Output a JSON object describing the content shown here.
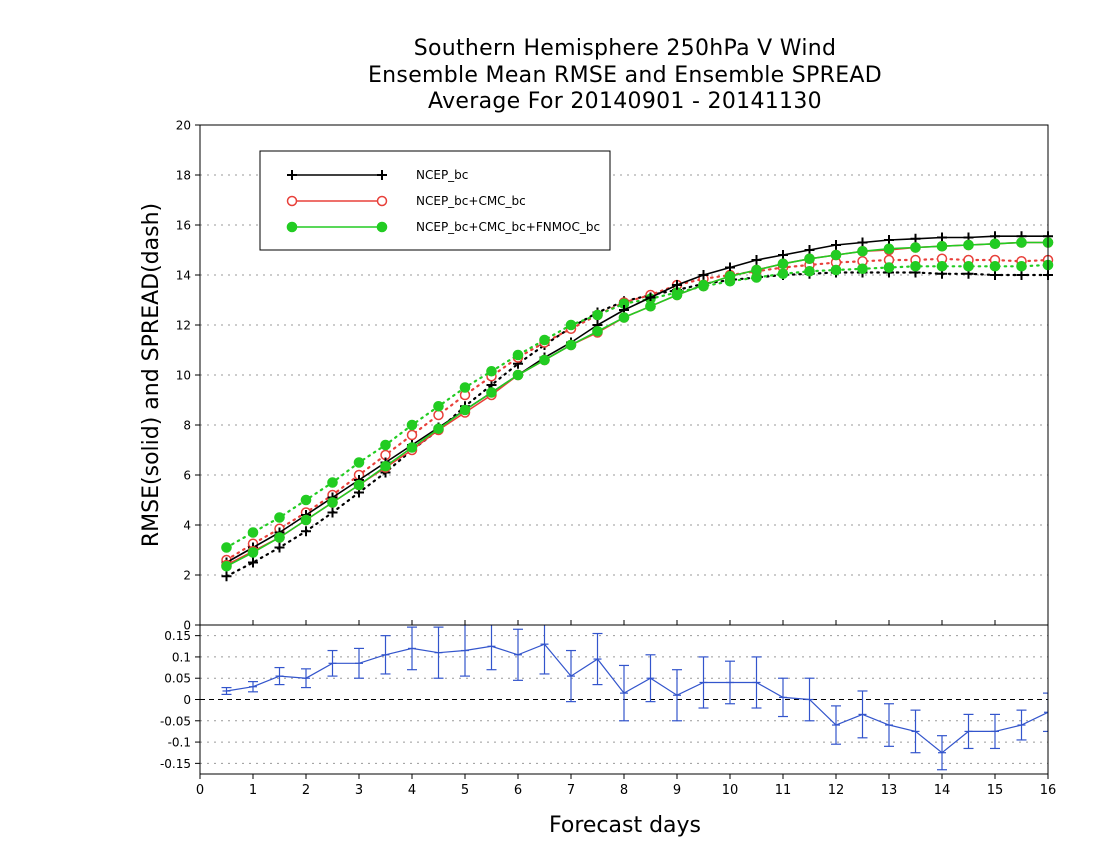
{
  "titles": {
    "line1": "Southern Hemisphere 250hPa V Wind",
    "line2": "Ensemble Mean RMSE and Ensemble SPREAD",
    "line3": "Average For 20140901 - 20141130"
  },
  "colors": {
    "ncep": "#000000",
    "cmc": "#e8403a",
    "fnmoc": "#22cc22",
    "diff": "#3355cc"
  },
  "chart_data": [
    {
      "type": "line",
      "ylabel": "RMSE(solid) and SPREAD(dash)",
      "xlabel": "",
      "xlim": [
        0,
        16
      ],
      "ylim": [
        0,
        20
      ],
      "yticks": [
        0,
        2,
        4,
        6,
        8,
        10,
        12,
        14,
        16,
        18,
        20
      ],
      "grid": true,
      "legend_position": "top-left",
      "x": [
        0.5,
        1,
        1.5,
        2,
        2.5,
        3,
        3.5,
        4,
        4.5,
        5,
        5.5,
        6,
        6.5,
        7,
        7.5,
        8,
        8.5,
        9,
        9.5,
        10,
        10.5,
        11,
        11.5,
        12,
        12.5,
        13,
        13.5,
        14,
        14.5,
        15,
        15.5,
        16
      ],
      "series": [
        {
          "name": "NCEP_bc",
          "style": "solid",
          "marker": "plus",
          "values": [
            2.5,
            3.1,
            3.7,
            4.4,
            5.1,
            5.8,
            6.5,
            7.2,
            7.9,
            8.6,
            9.3,
            10.0,
            10.7,
            11.3,
            12.0,
            12.6,
            13.1,
            13.6,
            14.0,
            14.3,
            14.6,
            14.8,
            15.0,
            15.2,
            15.3,
            15.4,
            15.45,
            15.5,
            15.5,
            15.55,
            15.55,
            15.55
          ]
        },
        {
          "name": "NCEP_bc+CMC_bc",
          "style": "solid",
          "marker": "open-circle",
          "values": [
            2.4,
            2.95,
            3.5,
            4.2,
            4.9,
            5.6,
            6.3,
            7.0,
            7.8,
            8.5,
            9.2,
            10.0,
            10.6,
            11.2,
            11.7,
            12.3,
            12.75,
            13.2,
            13.6,
            13.95,
            14.2,
            14.45,
            14.65,
            14.8,
            14.95,
            15.0,
            15.1,
            15.15,
            15.2,
            15.25,
            15.3,
            15.3
          ]
        },
        {
          "name": "NCEP_bc+CMC_bc+FNMOC_bc",
          "style": "solid",
          "marker": "filled-circle",
          "values": [
            2.35,
            2.9,
            3.5,
            4.2,
            4.9,
            5.6,
            6.35,
            7.1,
            7.85,
            8.6,
            9.3,
            10.0,
            10.6,
            11.2,
            11.75,
            12.3,
            12.75,
            13.2,
            13.6,
            13.95,
            14.2,
            14.45,
            14.65,
            14.8,
            14.95,
            15.05,
            15.1,
            15.15,
            15.2,
            15.25,
            15.3,
            15.3
          ]
        },
        {
          "name": "NCEP_bc",
          "style": "dotted",
          "marker": "plus",
          "values": [
            1.95,
            2.5,
            3.1,
            3.75,
            4.5,
            5.3,
            6.1,
            7.0,
            7.8,
            8.75,
            9.6,
            10.45,
            11.2,
            11.9,
            12.5,
            12.95,
            13.2,
            13.4,
            13.65,
            13.8,
            13.9,
            14.0,
            14.05,
            14.1,
            14.1,
            14.1,
            14.1,
            14.05,
            14.05,
            14.0,
            14.0,
            14.0
          ]
        },
        {
          "name": "NCEP_bc+CMC_bc",
          "style": "dotted",
          "marker": "open-circle",
          "values": [
            2.6,
            3.25,
            3.85,
            4.5,
            5.2,
            6.0,
            6.8,
            7.6,
            8.4,
            9.2,
            9.95,
            10.7,
            11.3,
            11.85,
            12.4,
            12.9,
            13.2,
            13.6,
            13.85,
            14.0,
            14.15,
            14.3,
            14.4,
            14.5,
            14.55,
            14.6,
            14.6,
            14.65,
            14.6,
            14.6,
            14.55,
            14.6
          ]
        },
        {
          "name": "NCEP_bc+CMC_bc+FNMOC_bc",
          "style": "dotted",
          "marker": "filled-circle",
          "values": [
            3.1,
            3.7,
            4.3,
            5.0,
            5.7,
            6.5,
            7.2,
            8.0,
            8.75,
            9.5,
            10.15,
            10.8,
            11.4,
            12.0,
            12.4,
            12.85,
            13.05,
            13.3,
            13.55,
            13.75,
            13.9,
            14.05,
            14.15,
            14.2,
            14.25,
            14.3,
            14.35,
            14.35,
            14.35,
            14.35,
            14.35,
            14.4
          ]
        }
      ]
    },
    {
      "type": "line",
      "xlabel": "Forecast days",
      "xlim": [
        0,
        16
      ],
      "ylim": [
        -0.175,
        0.175
      ],
      "xticks": [
        0,
        1,
        2,
        3,
        4,
        5,
        6,
        7,
        8,
        9,
        10,
        11,
        12,
        13,
        14,
        15,
        16
      ],
      "yticks": [
        -0.15,
        -0.1,
        -0.05,
        0,
        0.05,
        0.1,
        0.15
      ],
      "ytick_labels": [
        "-0.15",
        "-0.1",
        "-0.05",
        "0",
        "0.05",
        "0.1",
        "0.15"
      ],
      "zero_line": "dashed",
      "x": [
        0.5,
        1,
        1.5,
        2,
        2.5,
        3,
        3.5,
        4,
        4.5,
        5,
        5.5,
        6,
        6.5,
        7,
        7.5,
        8,
        8.5,
        9,
        9.5,
        10,
        10.5,
        11,
        11.5,
        12,
        12.5,
        13,
        13.5,
        14,
        14.5,
        15,
        15.5,
        16
      ],
      "series": [
        {
          "name": "",
          "values": [
            0.02,
            0.03,
            0.055,
            0.05,
            0.085,
            0.085,
            0.105,
            0.12,
            0.11,
            0.115,
            0.125,
            0.105,
            0.13,
            0.055,
            0.095,
            0.015,
            0.05,
            0.01,
            0.04,
            0.04,
            0.04,
            0.005,
            0.0,
            -0.06,
            -0.035,
            -0.06,
            -0.075,
            -0.125,
            -0.075,
            -0.075,
            -0.06,
            -0.03
          ],
          "error": [
            0.008,
            0.012,
            0.02,
            0.022,
            0.03,
            0.035,
            0.045,
            0.05,
            0.06,
            0.06,
            0.055,
            0.06,
            0.07,
            0.06,
            0.06,
            0.065,
            0.055,
            0.06,
            0.06,
            0.05,
            0.06,
            0.045,
            0.05,
            0.045,
            0.055,
            0.05,
            0.05,
            0.04,
            0.04,
            0.04,
            0.035,
            0.045
          ]
        }
      ]
    }
  ]
}
